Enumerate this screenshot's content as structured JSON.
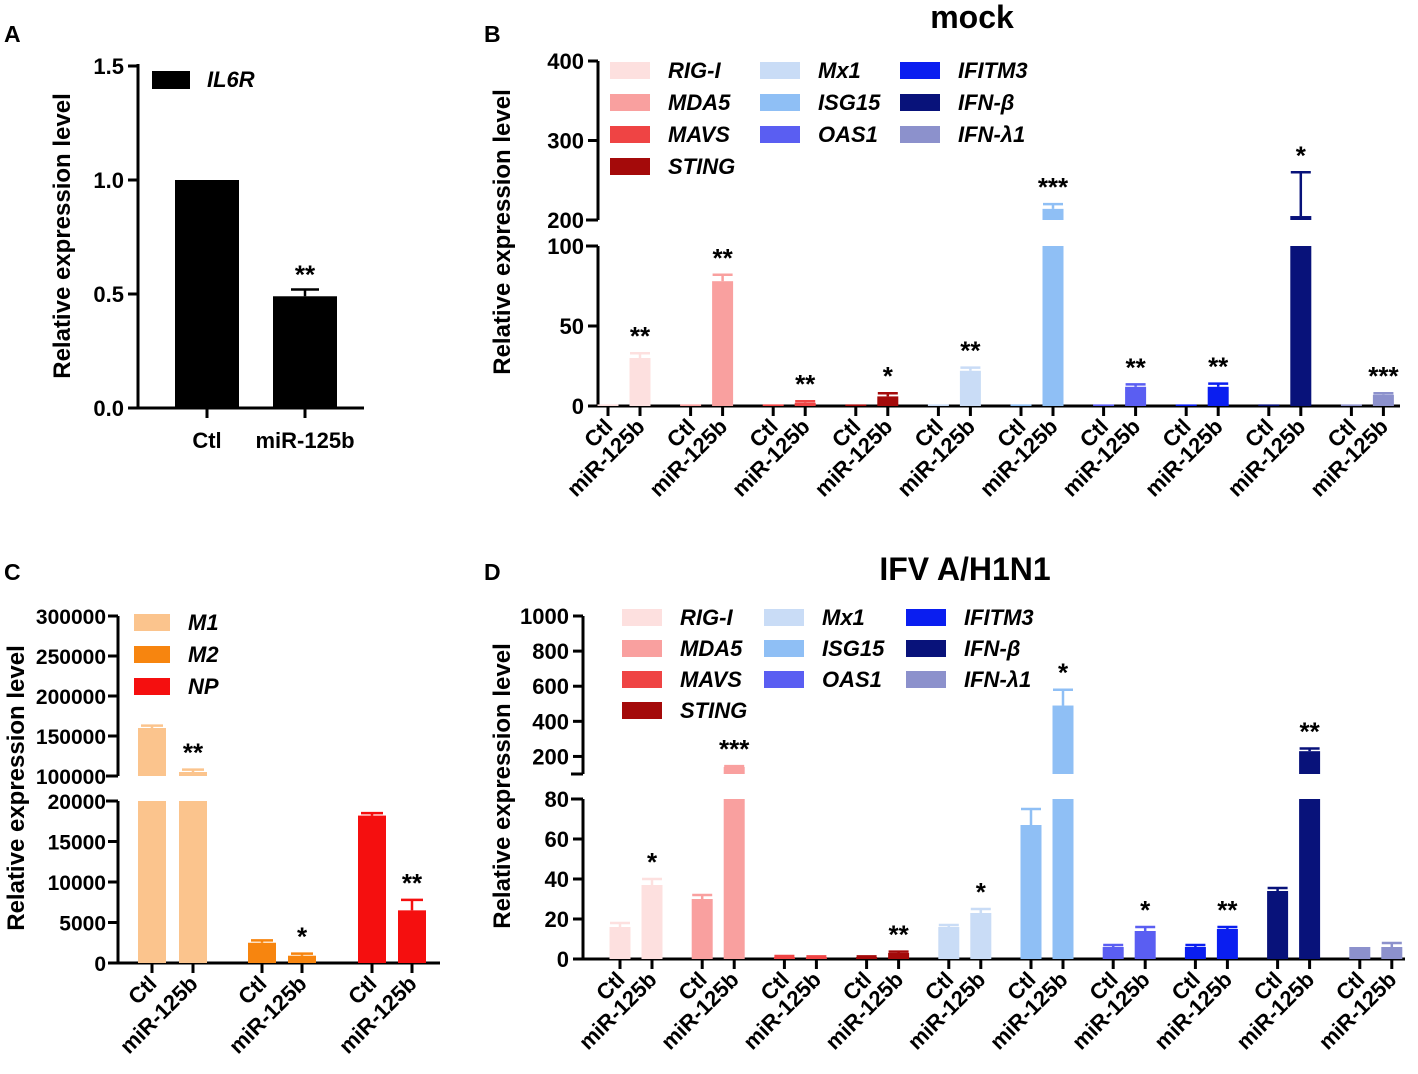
{
  "panel_labels": [
    "A",
    "B",
    "C",
    "D"
  ],
  "colors": {
    "IL6R": "#000000",
    "RIG-I": "#fde0df",
    "MDA5": "#f9a09f",
    "MAVS": "#ef4444",
    "STING": "#a40a0a",
    "Mx1": "#c9dcf6",
    "ISG15": "#8fbff5",
    "OAS1": "#5a5ef2",
    "IFITM3": "#0a1ef0",
    "IFN-β": "#08127a",
    "IFN-λ1": "#8c91cc",
    "M1": "#fbc48d",
    "M2": "#f7850f",
    "NP": "#f50f0f"
  },
  "chart_data": [
    {
      "panel": "A",
      "type": "bar",
      "title": "",
      "ylabel": "Relative expression level",
      "categories": [
        "Ctl",
        "miR-125b"
      ],
      "series": [
        {
          "name": "IL6R",
          "values": [
            1.0,
            0.49
          ],
          "errors": [
            0,
            0.03
          ]
        }
      ],
      "significance": [
        "",
        "**"
      ],
      "ylim": [
        0,
        1.5
      ],
      "yticks": [
        "0.0",
        "0.5",
        "1.0",
        "1.5"
      ],
      "legend": [
        "IL6R"
      ]
    },
    {
      "panel": "B",
      "type": "bar",
      "title": "mock",
      "ylabel": "Relative expression level",
      "groups": [
        "RIG-I",
        "MDA5",
        "MAVS",
        "STING",
        "Mx1",
        "ISG15",
        "OAS1",
        "IFITM3",
        "IFN-β",
        "IFN-λ1"
      ],
      "categories": [
        "Ctl",
        "miR-125b"
      ],
      "series": [
        {
          "name": "RIG-I",
          "values": [
            1,
            30
          ],
          "errors": [
            0,
            3
          ],
          "sig": "**"
        },
        {
          "name": "MDA5",
          "values": [
            1,
            78
          ],
          "errors": [
            0,
            4
          ],
          "sig": "**"
        },
        {
          "name": "MAVS",
          "values": [
            1,
            2
          ],
          "errors": [
            0,
            1
          ],
          "sig": "**"
        },
        {
          "name": "STING",
          "values": [
            1,
            6
          ],
          "errors": [
            0,
            2
          ],
          "sig": "*"
        },
        {
          "name": "Mx1",
          "values": [
            1,
            22
          ],
          "errors": [
            0,
            2
          ],
          "sig": "**"
        },
        {
          "name": "ISG15",
          "values": [
            1,
            214
          ],
          "errors": [
            0,
            6
          ],
          "sig": "***"
        },
        {
          "name": "OAS1",
          "values": [
            1,
            12
          ],
          "errors": [
            0,
            1.5
          ],
          "sig": "**"
        },
        {
          "name": "IFITM3",
          "values": [
            1,
            12
          ],
          "errors": [
            0,
            2
          ],
          "sig": "**"
        },
        {
          "name": "IFN-β",
          "values": [
            1,
            205
          ],
          "errors": [
            0,
            55
          ],
          "sig": "*"
        },
        {
          "name": "IFN-λ1",
          "values": [
            1,
            7
          ],
          "errors": [
            0,
            1
          ],
          "sig": "***"
        }
      ],
      "axis_break": {
        "lower": [
          0,
          100
        ],
        "upper": [
          200,
          400
        ]
      },
      "yticks_lower": [
        "0",
        "50",
        "100"
      ],
      "yticks_upper": [
        "200",
        "300",
        "400"
      ],
      "legend": [
        "RIG-I",
        "MDA5",
        "MAVS",
        "STING",
        "Mx1",
        "ISG15",
        "OAS1",
        "IFITM3",
        "IFN-β",
        "IFN-λ1"
      ]
    },
    {
      "panel": "C",
      "type": "bar",
      "title": "",
      "ylabel": "Relative expression level",
      "categories": [
        "Ctl",
        "miR-125b"
      ],
      "series": [
        {
          "name": "M1",
          "values": [
            160000,
            105000
          ],
          "errors": [
            3000,
            3000
          ],
          "sig": "**"
        },
        {
          "name": "M2",
          "values": [
            2500,
            900
          ],
          "errors": [
            300,
            250
          ],
          "sig": "*"
        },
        {
          "name": "NP",
          "values": [
            18200,
            6500
          ],
          "errors": [
            300,
            1300
          ],
          "sig": "**"
        }
      ],
      "axis_break": {
        "lower": [
          0,
          20000
        ],
        "upper": [
          100000,
          300000
        ]
      },
      "yticks_lower": [
        "0",
        "5000",
        "10000",
        "15000",
        "20000"
      ],
      "yticks_upper": [
        "100000",
        "150000",
        "200000",
        "250000",
        "300000"
      ],
      "legend": [
        "M1",
        "M2",
        "NP"
      ]
    },
    {
      "panel": "D",
      "type": "bar",
      "title": "IFV A/H1N1",
      "ylabel": "Relative expression level",
      "groups": [
        "RIG-I",
        "MDA5",
        "MAVS",
        "STING",
        "Mx1",
        "ISG15",
        "OAS1",
        "IFITM3",
        "IFN-β",
        "IFN-λ1"
      ],
      "categories": [
        "Ctl",
        "miR-125b"
      ],
      "series": [
        {
          "name": "RIG-I",
          "values": [
            16,
            37
          ],
          "errors": [
            2,
            3
          ],
          "sig": "*"
        },
        {
          "name": "MDA5",
          "values": [
            30,
            140
          ],
          "errors": [
            2,
            5
          ],
          "sig": "***"
        },
        {
          "name": "MAVS",
          "values": [
            1,
            1
          ],
          "errors": [
            0.5,
            0.3
          ],
          "sig": ""
        },
        {
          "name": "STING",
          "values": [
            1,
            3
          ],
          "errors": [
            0.3,
            0.7
          ],
          "sig": "**"
        },
        {
          "name": "Mx1",
          "values": [
            16,
            23
          ],
          "errors": [
            1,
            2
          ],
          "sig": "*"
        },
        {
          "name": "ISG15",
          "values": [
            67,
            490
          ],
          "errors": [
            8,
            90
          ],
          "sig": "*"
        },
        {
          "name": "OAS1",
          "values": [
            6,
            14
          ],
          "errors": [
            1,
            2
          ],
          "sig": "*"
        },
        {
          "name": "IFITM3",
          "values": [
            6,
            15
          ],
          "errors": [
            1,
            1
          ],
          "sig": "**"
        },
        {
          "name": "IFN-β",
          "values": [
            34,
            230
          ],
          "errors": [
            1.5,
            15
          ],
          "sig": "**"
        },
        {
          "name": "IFN-λ1",
          "values": [
            6,
            6
          ],
          "errors": [
            0,
            2
          ],
          "sig": ""
        }
      ],
      "axis_break": {
        "lower": [
          0,
          80
        ],
        "upper": [
          100,
          1000
        ]
      },
      "yticks_lower": [
        "0",
        "20",
        "40",
        "60",
        "80"
      ],
      "yticks_upper": [
        "200",
        "400",
        "600",
        "800",
        "1000"
      ],
      "legend": [
        "RIG-I",
        "MDA5",
        "MAVS",
        "STING",
        "Mx1",
        "ISG15",
        "OAS1",
        "IFITM3",
        "IFN-β",
        "IFN-λ1"
      ]
    }
  ]
}
